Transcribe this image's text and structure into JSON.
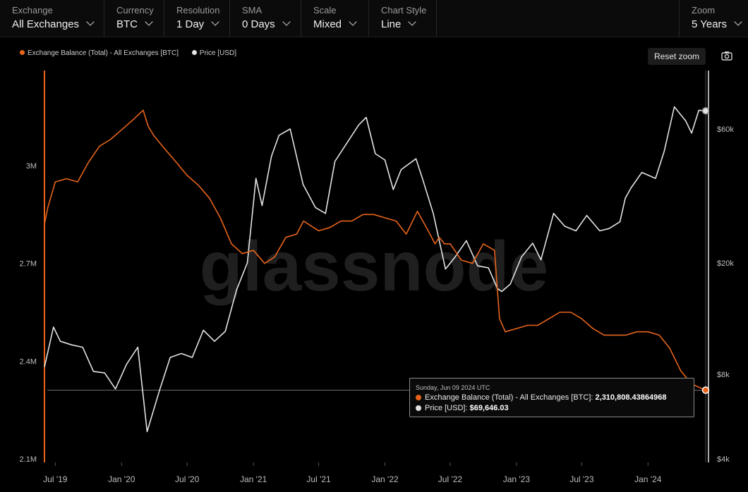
{
  "toolbar": {
    "exchange": {
      "label": "Exchange",
      "value": "All Exchanges"
    },
    "currency": {
      "label": "Currency",
      "value": "BTC"
    },
    "resolution": {
      "label": "Resolution",
      "value": "1 Day"
    },
    "sma": {
      "label": "SMA",
      "value": "0 Days"
    },
    "scale": {
      "label": "Scale",
      "value": "Mixed"
    },
    "chart_style": {
      "label": "Chart Style",
      "value": "Line"
    },
    "zoom": {
      "label": "Zoom",
      "value": "5 Years"
    }
  },
  "reset_zoom": "Reset zoom",
  "watermark": "glassnode",
  "tooltip": {
    "date": "Sunday, Jun 09 2024 UTC",
    "balance_label": "Exchange Balance (Total) - All Exchanges [BTC]:",
    "balance_value": "2,310,808.43864968",
    "price_label": "Price [USD]:",
    "price_value": "$69,646.03"
  },
  "colors": {
    "balance": "#e8641b",
    "price": "#e3e3e3",
    "background": "#000000"
  },
  "icons": {
    "camera": "camera-icon",
    "chevron": "chevron-down-icon"
  },
  "chart_data": {
    "type": "line",
    "series": [
      {
        "name": "Exchange Balance (Total) - All Exchanges [BTC]",
        "axis": "left",
        "x": [
          "2019-06-01",
          "2019-06-10",
          "2019-07-01",
          "2019-08-01",
          "2019-09-01",
          "2019-10-01",
          "2019-11-01",
          "2019-12-01",
          "2020-01-01",
          "2020-02-01",
          "2020-03-01",
          "2020-03-15",
          "2020-04-01",
          "2020-05-01",
          "2020-06-01",
          "2020-07-01",
          "2020-08-01",
          "2020-09-01",
          "2020-10-01",
          "2020-11-01",
          "2020-12-01",
          "2021-01-01",
          "2021-02-01",
          "2021-03-01",
          "2021-04-01",
          "2021-05-01",
          "2021-05-20",
          "2021-07-01",
          "2021-08-01",
          "2021-09-01",
          "2021-10-01",
          "2021-11-01",
          "2021-12-01",
          "2022-01-01",
          "2022-02-01",
          "2022-03-01",
          "2022-04-01",
          "2022-05-01",
          "2022-05-20",
          "2022-06-01",
          "2022-06-15",
          "2022-07-01",
          "2022-08-01",
          "2022-09-01",
          "2022-10-01",
          "2022-11-01",
          "2022-11-15",
          "2022-12-01",
          "2023-01-01",
          "2023-02-01",
          "2023-03-01",
          "2023-04-01",
          "2023-05-01",
          "2023-06-01",
          "2023-07-01",
          "2023-08-01",
          "2023-09-01",
          "2023-10-01",
          "2023-11-01",
          "2023-12-01",
          "2024-01-01",
          "2024-02-01",
          "2024-03-01",
          "2024-04-01",
          "2024-05-01",
          "2024-06-09"
        ],
        "y": [
          2820000,
          2870000,
          2950000,
          2960000,
          2950000,
          3010000,
          3060000,
          3080000,
          3110000,
          3140000,
          3170000,
          3120000,
          3090000,
          3050000,
          3010000,
          2970000,
          2940000,
          2900000,
          2840000,
          2760000,
          2730000,
          2740000,
          2700000,
          2720000,
          2780000,
          2790000,
          2830000,
          2800000,
          2810000,
          2830000,
          2830000,
          2850000,
          2850000,
          2840000,
          2830000,
          2790000,
          2860000,
          2800000,
          2760000,
          2780000,
          2760000,
          2760000,
          2710000,
          2700000,
          2760000,
          2740000,
          2530000,
          2490000,
          2500000,
          2510000,
          2510000,
          2530000,
          2550000,
          2550000,
          2530000,
          2500000,
          2480000,
          2480000,
          2480000,
          2490000,
          2490000,
          2480000,
          2440000,
          2370000,
          2330000,
          2310808
        ]
      },
      {
        "name": "Price [USD]",
        "axis": "right",
        "x": [
          "2019-06-01",
          "2019-06-26",
          "2019-07-15",
          "2019-08-15",
          "2019-09-15",
          "2019-10-15",
          "2019-11-15",
          "2019-12-15",
          "2020-01-15",
          "2020-02-15",
          "2020-03-12",
          "2020-04-15",
          "2020-05-15",
          "2020-06-15",
          "2020-07-15",
          "2020-08-15",
          "2020-09-15",
          "2020-10-15",
          "2020-11-15",
          "2020-12-15",
          "2021-01-08",
          "2021-01-25",
          "2021-02-20",
          "2021-03-13",
          "2021-04-13",
          "2021-05-19",
          "2021-06-22",
          "2021-07-20",
          "2021-08-15",
          "2021-09-07",
          "2021-10-20",
          "2021-11-10",
          "2021-12-05",
          "2022-01-01",
          "2022-01-24",
          "2022-02-15",
          "2022-03-28",
          "2022-04-15",
          "2022-05-15",
          "2022-06-18",
          "2022-07-15",
          "2022-08-15",
          "2022-09-15",
          "2022-10-15",
          "2022-11-09",
          "2022-11-21",
          "2022-12-15",
          "2023-01-15",
          "2023-02-15",
          "2023-03-10",
          "2023-04-14",
          "2023-05-15",
          "2023-06-15",
          "2023-07-15",
          "2023-08-20",
          "2023-09-15",
          "2023-10-15",
          "2023-10-30",
          "2023-11-15",
          "2023-12-15",
          "2024-01-22",
          "2024-02-15",
          "2024-03-14",
          "2024-04-15",
          "2024-05-01",
          "2024-05-21",
          "2024-06-09"
        ],
        "y": [
          8500,
          11800,
          10500,
          10200,
          10000,
          8200,
          8100,
          7100,
          8700,
          10000,
          5000,
          7000,
          9200,
          9500,
          9200,
          11500,
          10500,
          11400,
          16000,
          20000,
          40000,
          32000,
          48000,
          57000,
          60000,
          38000,
          31500,
          30000,
          46000,
          51000,
          62000,
          66000,
          49000,
          46500,
          36500,
          43000,
          47000,
          40000,
          30000,
          19000,
          21000,
          24000,
          19500,
          19200,
          16200,
          15800,
          16800,
          21000,
          23500,
          20500,
          30000,
          27000,
          26000,
          29500,
          26000,
          26500,
          28000,
          34000,
          37000,
          42000,
          40000,
          50000,
          72000,
          64000,
          58000,
          70000,
          69646
        ]
      }
    ],
    "left_axis": {
      "ticks": [
        "3M",
        "2.7M",
        "2.4M",
        "2.1M"
      ],
      "range": [
        2100000,
        3300000
      ]
    },
    "right_axis": {
      "ticks": [
        "$60k",
        "$20k",
        "$8k",
        "$4k"
      ],
      "scale": "log",
      "range": [
        4000,
        90000
      ]
    },
    "x_ticks": [
      "Jul '19",
      "Jan '20",
      "Jul '20",
      "Jan '21",
      "Jul '21",
      "Jan '22",
      "Jul '22",
      "Jan '23",
      "Jul '23",
      "Jan '24"
    ],
    "legend": [
      {
        "label": "Exchange Balance (Total) - All Exchanges [BTC]",
        "color": "#e8641b"
      },
      {
        "label": "Price [USD]",
        "color": "#e3e3e3"
      }
    ]
  }
}
